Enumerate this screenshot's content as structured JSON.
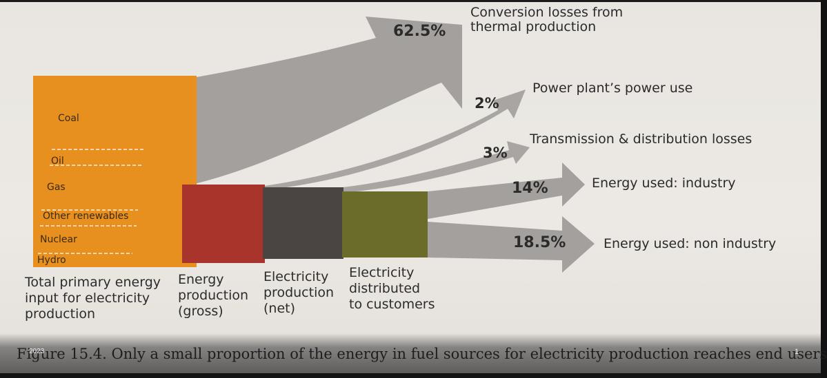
{
  "fuel_sources": [
    "Coal",
    "Oil",
    "Gas",
    "Other renewables",
    "Nuclear",
    "Hydro"
  ],
  "stages": [
    "Total primary energy\ninput for electricity\nproduction",
    "Energy\nproduction\n(gross)",
    "Electricity\nproduction\n(net)",
    "Electricity\ndistributed\nto customers"
  ],
  "outputs": [
    {
      "percent": "62.5%",
      "label": "Conversion losses from\nthermal production"
    },
    {
      "percent": "2%",
      "label": "Power plant’s power use"
    },
    {
      "percent": "3%",
      "label": "Transmission & distribution losses"
    },
    {
      "percent": "14%",
      "label": "Energy used: industry"
    },
    {
      "percent": "18.5%",
      "label": "Energy used: non industry"
    }
  ],
  "caption": "Figure 15.4. Only a small proportion of the energy in fuel sources for electricity production reaches end users",
  "overlay": {
    "year": "2023",
    "page_indicator": "1"
  },
  "colors": {
    "primary_energy": "#e8901f",
    "energy_gross": "#a8342c",
    "electricity_net": "#4a4542",
    "electricity_distributed": "#6b6b2a",
    "flow_gray": "#a3a09d"
  }
}
